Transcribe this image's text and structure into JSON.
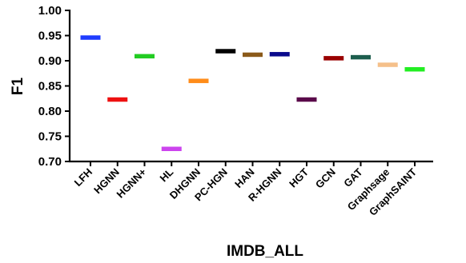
{
  "chart_data": {
    "type": "scatter",
    "marker": "horizontal-bar",
    "xlabel": "IMDB_ALL",
    "ylabel": "F1",
    "ylim": [
      0.7,
      1.0
    ],
    "yticks": [
      "0.70",
      "0.75",
      "0.80",
      "0.85",
      "0.90",
      "0.95",
      "1.00"
    ],
    "grid": false,
    "categories": [
      "LFH",
      "HGNN",
      "HGNN+",
      "HL",
      "DHGNN",
      "PC-HGN",
      "HAN",
      "R-HGNN",
      "HGT",
      "GCN",
      "GAT",
      "Graphsage",
      "GraphSAINT"
    ],
    "values": [
      0.946,
      0.823,
      0.909,
      0.725,
      0.86,
      0.919,
      0.912,
      0.913,
      0.823,
      0.905,
      0.907,
      0.892,
      0.883
    ],
    "colors": [
      "#1f3cff",
      "#ee1111",
      "#22cc22",
      "#cc44ee",
      "#ff8c1a",
      "#000000",
      "#8b5a1a",
      "#0a0a8c",
      "#5a0a4a",
      "#990000",
      "#1d5e4e",
      "#f5c08a",
      "#22ee22"
    ]
  }
}
